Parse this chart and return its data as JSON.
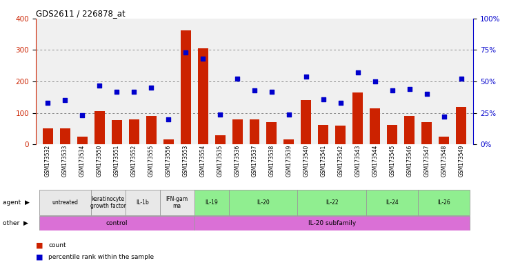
{
  "title": "GDS2611 / 226878_at",
  "samples": [
    "GSM173532",
    "GSM173533",
    "GSM173534",
    "GSM173550",
    "GSM173551",
    "GSM173552",
    "GSM173555",
    "GSM173556",
    "GSM173553",
    "GSM173554",
    "GSM173535",
    "GSM173536",
    "GSM173537",
    "GSM173538",
    "GSM173539",
    "GSM173540",
    "GSM173541",
    "GSM173542",
    "GSM173543",
    "GSM173544",
    "GSM173545",
    "GSM173546",
    "GSM173547",
    "GSM173548",
    "GSM173549"
  ],
  "counts": [
    52,
    52,
    25,
    105,
    78,
    80,
    90,
    15,
    362,
    305,
    30,
    80,
    80,
    70,
    15,
    140,
    62,
    60,
    165,
    115,
    62,
    90,
    70,
    25,
    120
  ],
  "percentiles": [
    33,
    35,
    23,
    47,
    42,
    42,
    45,
    20,
    73,
    68,
    24,
    52,
    43,
    42,
    24,
    54,
    36,
    33,
    57,
    50,
    43,
    44,
    40,
    22,
    52
  ],
  "agent_groups": [
    {
      "label": "untreated",
      "start": 0,
      "end": 3,
      "color": "#e8e8e8"
    },
    {
      "label": "keratinocyte\ngrowth factor",
      "start": 3,
      "end": 5,
      "color": "#e8e8e8"
    },
    {
      "label": "IL-1b",
      "start": 5,
      "end": 7,
      "color": "#e8e8e8"
    },
    {
      "label": "IFN-gam\nma",
      "start": 7,
      "end": 9,
      "color": "#e8e8e8"
    },
    {
      "label": "IL-19",
      "start": 9,
      "end": 11,
      "color": "#90ee90"
    },
    {
      "label": "IL-20",
      "start": 11,
      "end": 15,
      "color": "#90ee90"
    },
    {
      "label": "IL-22",
      "start": 15,
      "end": 19,
      "color": "#90ee90"
    },
    {
      "label": "IL-24",
      "start": 19,
      "end": 22,
      "color": "#90ee90"
    },
    {
      "label": "IL-26",
      "start": 22,
      "end": 25,
      "color": "#90ee90"
    }
  ],
  "other_groups": [
    {
      "label": "control",
      "start": 0,
      "end": 9,
      "color": "#da70d6"
    },
    {
      "label": "IL-20 subfamily",
      "start": 9,
      "end": 25,
      "color": "#da70d6"
    }
  ],
  "bar_color": "#cc2200",
  "dot_color": "#0000cc",
  "ylim_left": [
    0,
    400
  ],
  "ylim_right": [
    0,
    100
  ],
  "yticks_left": [
    0,
    100,
    200,
    300,
    400
  ],
  "yticks_right": [
    0,
    25,
    50,
    75,
    100
  ],
  "bg_color": "#f0f0f0",
  "grid_color": "#888888"
}
